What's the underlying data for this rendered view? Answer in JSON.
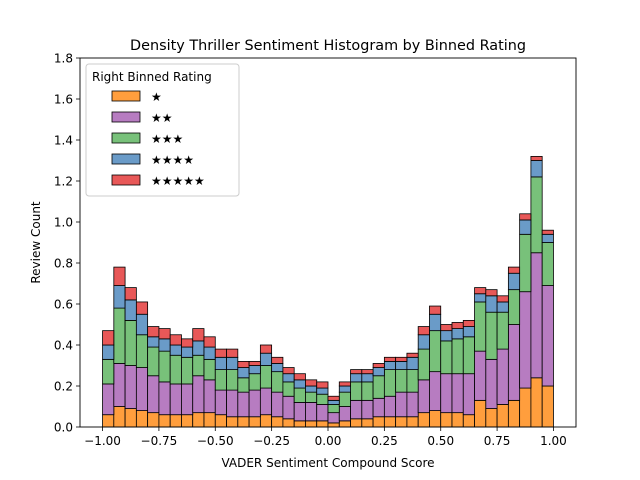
{
  "chart_data": {
    "type": "bar",
    "stacked": true,
    "title": "Density Thriller Sentiment Histogram by Binned Rating",
    "xlabel": "VADER Sentiment Compound Score",
    "ylabel": "Review Count",
    "xlim": [
      -1.1,
      1.1
    ],
    "ylim": [
      0,
      1.8
    ],
    "xticks": [
      -1.0,
      -0.75,
      -0.5,
      -0.25,
      0.0,
      0.25,
      0.5,
      0.75,
      1.0
    ],
    "xtick_labels": [
      "−1.00",
      "−0.75",
      "−0.50",
      "−0.25",
      "0.00",
      "0.25",
      "0.50",
      "0.75",
      "1.00"
    ],
    "yticks": [
      0.0,
      0.2,
      0.4,
      0.6,
      0.8,
      1.0,
      1.2,
      1.4,
      1.6,
      1.8
    ],
    "ytick_labels": [
      "0.0",
      "0.2",
      "0.4",
      "0.6",
      "0.8",
      "1.0",
      "1.2",
      "1.4",
      "1.6",
      "1.8"
    ],
    "grid": false,
    "legend": {
      "title": "Right Binned Rating",
      "placement": "top-left"
    },
    "bins": {
      "start": -1.0,
      "width": 0.05,
      "count": 40
    },
    "series": [
      {
        "name": "★",
        "color": "#ff9e3d",
        "values": [
          0.06,
          0.1,
          0.09,
          0.08,
          0.07,
          0.06,
          0.06,
          0.06,
          0.07,
          0.07,
          0.06,
          0.05,
          0.05,
          0.05,
          0.06,
          0.05,
          0.04,
          0.03,
          0.03,
          0.03,
          0.02,
          0.03,
          0.04,
          0.04,
          0.05,
          0.05,
          0.05,
          0.05,
          0.07,
          0.08,
          0.07,
          0.07,
          0.06,
          0.13,
          0.09,
          0.11,
          0.13,
          0.19,
          0.24,
          0.2
        ]
      },
      {
        "name": "★★",
        "color": "#b77cc1",
        "values": [
          0.15,
          0.21,
          0.21,
          0.21,
          0.18,
          0.16,
          0.15,
          0.15,
          0.18,
          0.16,
          0.12,
          0.13,
          0.12,
          0.13,
          0.13,
          0.12,
          0.11,
          0.09,
          0.09,
          0.08,
          0.05,
          0.07,
          0.09,
          0.09,
          0.09,
          0.1,
          0.12,
          0.12,
          0.16,
          0.19,
          0.19,
          0.19,
          0.2,
          0.24,
          0.24,
          0.27,
          0.37,
          0.47,
          0.61,
          0.49
        ]
      },
      {
        "name": "★★★",
        "color": "#78c17a",
        "values": [
          0.12,
          0.27,
          0.22,
          0.16,
          0.14,
          0.15,
          0.14,
          0.13,
          0.1,
          0.1,
          0.1,
          0.1,
          0.07,
          0.08,
          0.11,
          0.1,
          0.07,
          0.07,
          0.05,
          0.05,
          0.04,
          0.07,
          0.09,
          0.09,
          0.11,
          0.13,
          0.11,
          0.11,
          0.15,
          0.2,
          0.16,
          0.17,
          0.18,
          0.24,
          0.23,
          0.18,
          0.17,
          0.28,
          0.37,
          0.21
        ]
      },
      {
        "name": "★★★★",
        "color": "#6a9bc8",
        "values": [
          0.07,
          0.11,
          0.1,
          0.1,
          0.05,
          0.06,
          0.05,
          0.05,
          0.07,
          0.06,
          0.06,
          0.06,
          0.05,
          0.04,
          0.06,
          0.04,
          0.04,
          0.04,
          0.03,
          0.03,
          0.02,
          0.03,
          0.04,
          0.04,
          0.04,
          0.04,
          0.04,
          0.06,
          0.07,
          0.08,
          0.05,
          0.05,
          0.05,
          0.04,
          0.08,
          0.05,
          0.08,
          0.07,
          0.08,
          0.04
        ]
      },
      {
        "name": "★★★★★",
        "color": "#e85858",
        "values": [
          0.07,
          0.09,
          0.06,
          0.06,
          0.05,
          0.05,
          0.05,
          0.04,
          0.06,
          0.05,
          0.04,
          0.04,
          0.03,
          0.02,
          0.04,
          0.03,
          0.03,
          0.03,
          0.03,
          0.03,
          0.02,
          0.02,
          0.02,
          0.02,
          0.02,
          0.02,
          0.02,
          0.02,
          0.04,
          0.04,
          0.03,
          0.03,
          0.03,
          0.03,
          0.03,
          0.03,
          0.03,
          0.03,
          0.02,
          0.02
        ]
      }
    ]
  }
}
